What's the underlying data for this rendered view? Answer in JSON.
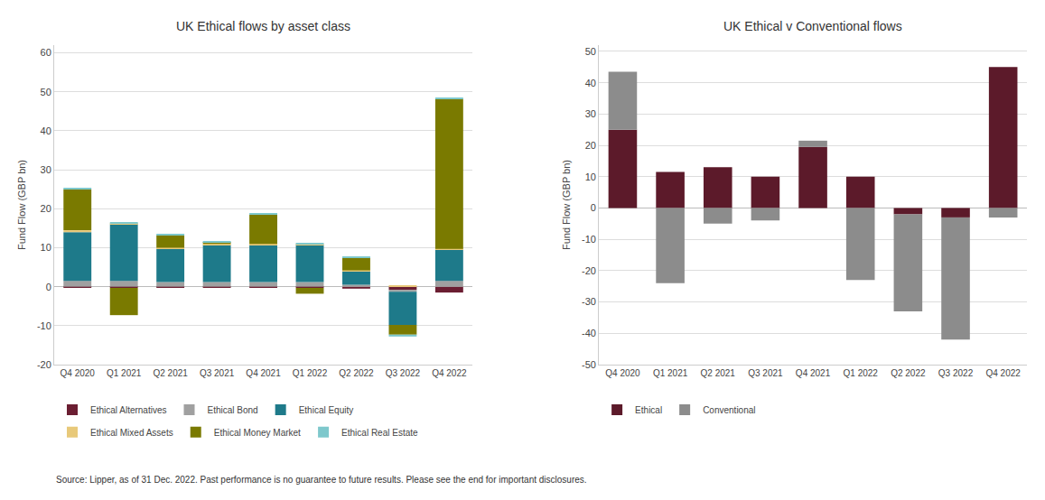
{
  "chart_data": [
    {
      "type": "bar",
      "title": "UK Ethical flows by asset class",
      "ylabel": "Fund Flow (GBP bn)",
      "categories": [
        "Q4 2020",
        "Q1 2021",
        "Q2 2021",
        "Q3 2021",
        "Q4 2021",
        "Q1 2022",
        "Q2 2022",
        "Q3 2022",
        "Q4 2022"
      ],
      "series": [
        {
          "name": "Ethical Alternatives",
          "color": "#6B1E32",
          "values": [
            -0.3,
            -0.3,
            -0.3,
            -0.3,
            -0.3,
            -0.3,
            -0.5,
            -0.8,
            -1.5
          ]
        },
        {
          "name": "Ethical Bond",
          "color": "#A0A0A0",
          "values": [
            1.5,
            1.5,
            1.2,
            1.2,
            1.2,
            1.2,
            0.5,
            -0.5,
            1.5
          ]
        },
        {
          "name": "Ethical Equity",
          "color": "#1E7A8A",
          "values": [
            12.5,
            14.5,
            8.5,
            9.5,
            9.5,
            9.5,
            3.5,
            -8.5,
            8.0
          ]
        },
        {
          "name": "Ethical Mixed Assets",
          "color": "#E8C97A",
          "values": [
            0.5,
            0.3,
            0.3,
            0.3,
            0.3,
            0.3,
            0.2,
            0.2,
            0.2
          ]
        },
        {
          "name": "Ethical Money Market",
          "color": "#7A7A00",
          "values": [
            10.5,
            -7.0,
            3.2,
            0.5,
            7.5,
            -1.5,
            3.3,
            -2.5,
            38.5
          ]
        },
        {
          "name": "Ethical Real Estate",
          "color": "#7EC8CC",
          "values": [
            0.3,
            0.3,
            0.2,
            0.2,
            0.2,
            0.2,
            0.1,
            -0.5,
            0.3
          ]
        }
      ],
      "ylim": [
        -20,
        62
      ],
      "yticks": [
        -20,
        -10,
        0,
        10,
        20,
        30,
        40,
        50,
        60
      ],
      "stacked": true,
      "grid": true,
      "legend": "bottom",
      "annotations": [
        "Source: Lipper, as of 31 Dec. 2022. Past performance is no guarantee to future results. Please see the end for important disclosures."
      ]
    },
    {
      "type": "bar",
      "title": "UK Ethical v Conventional flows",
      "ylabel": "Fund Flow (GBP bn)",
      "categories": [
        "Q4 2020",
        "Q1 2021",
        "Q2 2021",
        "Q3 2021",
        "Q4 2021",
        "Q1 2022",
        "Q2 2022",
        "Q3 2022",
        "Q4 2022"
      ],
      "series": [
        {
          "name": "Ethical",
          "color": "#5C1A2A",
          "values": [
            25.0,
            11.5,
            13.0,
            10.0,
            19.5,
            10.0,
            -2.0,
            -3.0,
            45.0
          ]
        },
        {
          "name": "Conventional",
          "color": "#8C8C8C",
          "values": [
            18.5,
            -24.0,
            -5.0,
            -4.0,
            2.0,
            -23.0,
            -31.0,
            -39.0,
            -3.0
          ]
        }
      ],
      "ylim": [
        -50,
        52
      ],
      "yticks": [
        -50,
        -40,
        -30,
        -20,
        -10,
        0,
        10,
        20,
        30,
        40,
        50
      ],
      "stacked": true,
      "grid": true,
      "legend": "bottom"
    }
  ]
}
